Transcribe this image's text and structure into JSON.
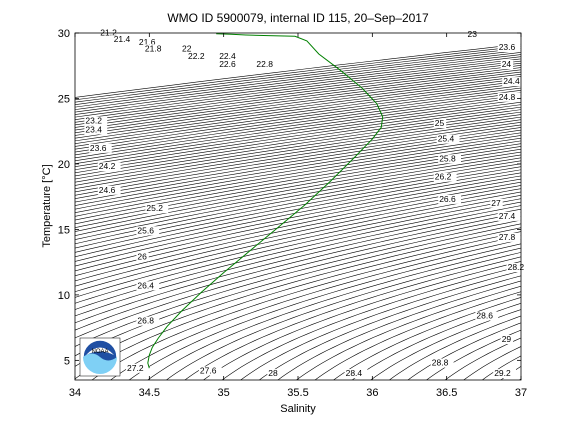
{
  "chart_data": {
    "type": "line",
    "title": "WMO ID 5900079, internal ID 115, 20–Sep–2017",
    "xlabel": "Salinity",
    "ylabel": "Temperature [°C]",
    "xlim": [
      34,
      37
    ],
    "ylim": [
      3.5,
      30
    ],
    "xticks": [
      {
        "value": 34,
        "label": "34"
      },
      {
        "value": 34.5,
        "label": "34.5"
      },
      {
        "value": 35,
        "label": "35"
      },
      {
        "value": 35.5,
        "label": "35.5"
      },
      {
        "value": 36,
        "label": "36"
      },
      {
        "value": 36.5,
        "label": "36.5"
      },
      {
        "value": 37,
        "label": "37"
      }
    ],
    "yticks": [
      {
        "value": 5,
        "label": "5"
      },
      {
        "value": 10,
        "label": "10"
      },
      {
        "value": 15,
        "label": "15"
      },
      {
        "value": 20,
        "label": "20"
      },
      {
        "value": 25,
        "label": "25"
      },
      {
        "value": 30,
        "label": "30"
      }
    ],
    "grid": false,
    "legend": "none",
    "series": [
      {
        "color": "#008000",
        "points": [
          [
            34.5,
            4.4
          ],
          [
            34.49,
            4.8
          ],
          [
            34.5,
            5.4
          ],
          [
            34.52,
            6.0
          ],
          [
            34.56,
            6.7
          ],
          [
            34.62,
            7.6
          ],
          [
            34.72,
            8.8
          ],
          [
            34.85,
            10.2
          ],
          [
            35.0,
            11.7
          ],
          [
            35.18,
            13.4
          ],
          [
            35.36,
            15.1
          ],
          [
            35.55,
            16.9
          ],
          [
            35.72,
            18.7
          ],
          [
            35.88,
            20.5
          ],
          [
            36.0,
            21.9
          ],
          [
            36.06,
            22.8
          ],
          [
            36.07,
            23.6
          ],
          [
            36.03,
            24.6
          ],
          [
            35.93,
            25.8
          ],
          [
            35.78,
            27.2
          ],
          [
            35.64,
            28.4
          ],
          [
            35.56,
            29.4
          ],
          [
            35.48,
            29.75
          ],
          [
            35.3,
            29.8
          ],
          [
            35.15,
            29.85
          ],
          [
            35.05,
            29.9
          ],
          [
            34.95,
            29.95
          ]
        ]
      }
    ],
    "contour_labels": [
      {
        "text": "21.2",
        "S": 34.17,
        "T": 29.8
      },
      {
        "text": "21.4",
        "S": 34.26,
        "T": 29.3
      },
      {
        "text": "21.6",
        "S": 34.43,
        "T": 29.1
      },
      {
        "text": "21.8",
        "S": 34.47,
        "T": 28.6
      },
      {
        "text": "22",
        "S": 34.72,
        "T": 28.6
      },
      {
        "text": "22.2",
        "S": 34.76,
        "T": 28.0
      },
      {
        "text": "22.4",
        "S": 34.97,
        "T": 28.0
      },
      {
        "text": "22.6",
        "S": 34.97,
        "T": 27.4
      },
      {
        "text": "22.8",
        "S": 35.22,
        "T": 27.4
      },
      {
        "text": "23",
        "S": 36.64,
        "T": 29.7
      },
      {
        "text": "23.2",
        "S": 34.07,
        "T": 23.1
      },
      {
        "text": "23.4",
        "S": 34.07,
        "T": 22.4
      },
      {
        "text": "23.6",
        "S": 34.1,
        "T": 21.0
      },
      {
        "text": "24.2",
        "S": 34.16,
        "T": 19.6
      },
      {
        "text": "24.6",
        "S": 34.16,
        "T": 17.8
      },
      {
        "text": "25.2",
        "S": 34.48,
        "T": 16.4
      },
      {
        "text": "25.6",
        "S": 34.42,
        "T": 14.7
      },
      {
        "text": "26",
        "S": 34.42,
        "T": 12.7
      },
      {
        "text": "26.4",
        "S": 34.42,
        "T": 10.5
      },
      {
        "text": "26.8",
        "S": 34.42,
        "T": 7.8
      },
      {
        "text": "27.2",
        "S": 34.35,
        "T": 4.2
      },
      {
        "text": "27.6",
        "S": 34.84,
        "T": 4.0
      },
      {
        "text": "28",
        "S": 35.3,
        "T": 3.8
      },
      {
        "text": "28.4",
        "S": 35.82,
        "T": 3.8
      },
      {
        "text": "28.8",
        "S": 36.4,
        "T": 4.6
      },
      {
        "text": "29.2",
        "S": 36.82,
        "T": 3.8
      },
      {
        "text": "29",
        "S": 36.87,
        "T": 6.4
      },
      {
        "text": "28.6",
        "S": 36.7,
        "T": 8.2
      },
      {
        "text": "28.2",
        "S": 36.91,
        "T": 11.9
      },
      {
        "text": "27.8",
        "S": 36.85,
        "T": 14.2
      },
      {
        "text": "27.4",
        "S": 36.85,
        "T": 15.8
      },
      {
        "text": "27",
        "S": 36.8,
        "T": 16.8
      },
      {
        "text": "26.6",
        "S": 36.45,
        "T": 17.1
      },
      {
        "text": "26.2",
        "S": 36.42,
        "T": 18.8
      },
      {
        "text": "25.8",
        "S": 36.45,
        "T": 20.2
      },
      {
        "text": "25.4",
        "S": 36.44,
        "T": 21.7
      },
      {
        "text": "25",
        "S": 36.42,
        "T": 22.9
      },
      {
        "text": "24.8",
        "S": 36.85,
        "T": 24.9
      },
      {
        "text": "24.4",
        "S": 36.88,
        "T": 26.1
      },
      {
        "text": "24",
        "S": 36.87,
        "T": 27.4
      },
      {
        "text": "23.6",
        "S": 36.85,
        "T": 28.7
      }
    ]
  },
  "logo": {
    "text": "NOAA",
    "icon": "noaa-logo-icon"
  }
}
